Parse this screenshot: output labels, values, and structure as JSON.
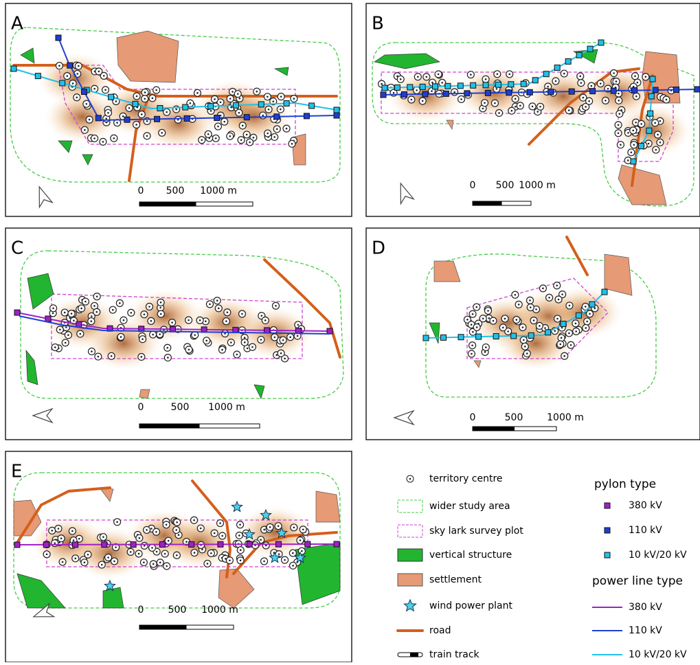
{
  "panels": [
    {
      "label": "A",
      "scale": [
        "0",
        "500",
        "1000 m"
      ]
    },
    {
      "label": "B",
      "scale": [
        "0",
        "500",
        "1000 m"
      ]
    },
    {
      "label": "C",
      "scale": [
        "0",
        "500",
        "1000 m"
      ]
    },
    {
      "label": "D",
      "scale": [
        "0",
        "500",
        "1000 m"
      ]
    },
    {
      "label": "E",
      "scale": [
        "0",
        "500",
        "1000 m"
      ]
    }
  ],
  "legend": {
    "items": [
      "territory centre",
      "wider study area",
      "sky lark survey plot",
      "vertical structure",
      "settlement",
      "wind power plant",
      "road",
      "train track"
    ],
    "pylon_title": "pylon type",
    "pylons": [
      "380 kV",
      "110 kV",
      "10 kV/20 kV"
    ],
    "line_title": "power line type",
    "lines": [
      "380 kV",
      "110 kV",
      "10 kV/20 kV"
    ]
  }
}
